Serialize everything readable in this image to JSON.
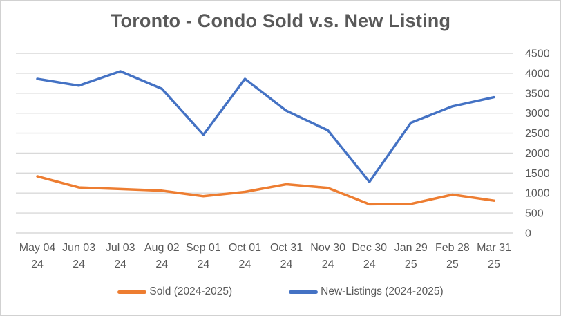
{
  "chart_data": {
    "type": "line",
    "title": "Toronto - Condo Sold v.s. New Listing",
    "categories": [
      "May 04 24",
      "Jun 03 24",
      "Jul 03 24",
      "Aug 02 24",
      "Sep 01 24",
      "Oct 01 24",
      "Oct 31 24",
      "Nov 30 24",
      "Dec 30 24",
      "Jan 29 25",
      "Feb 28 25",
      "Mar 31 25"
    ],
    "series": [
      {
        "name": "Sold (2024-2025)",
        "color": "#ED7D31",
        "values": [
          1420,
          1140,
          1100,
          1060,
          920,
          1030,
          1220,
          1130,
          720,
          730,
          960,
          810
        ]
      },
      {
        "name": "New-Listings (2024-2025)",
        "color": "#4472C4",
        "values": [
          3860,
          3690,
          4050,
          3610,
          2460,
          3860,
          3060,
          2570,
          1280,
          2760,
          3170,
          3400
        ]
      }
    ],
    "xlabel": "",
    "ylabel": "",
    "ylim": [
      0,
      4500
    ],
    "yticks": [
      0,
      500,
      1000,
      1500,
      2000,
      2500,
      3000,
      3500,
      4000,
      4500
    ],
    "grid": true,
    "y_axis_side": "right",
    "legend_position": "bottom"
  },
  "style": {
    "gridline_color": "#d9d9d9",
    "axis_text_color": "#595959",
    "title_color": "#595959",
    "border_color": "#d1d1d1",
    "background": "#ffffff"
  }
}
